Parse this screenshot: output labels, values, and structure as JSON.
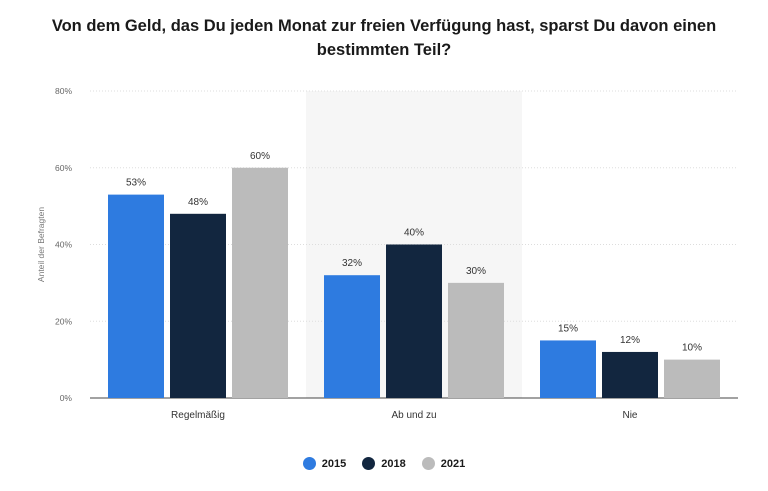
{
  "chart_data": {
    "type": "bar",
    "title": "Von dem Geld, das Du jeden Monat zur freien Verfügung hast, sparst Du davon einen bestimmten Teil?",
    "ylabel": "Anteil der Befragten",
    "xlabel": "",
    "ylim": [
      0,
      80
    ],
    "yticks": [
      0,
      20,
      40,
      60,
      80
    ],
    "ytick_labels": [
      "0%",
      "20%",
      "40%",
      "60%",
      "80%"
    ],
    "categories": [
      "Regelmäßig",
      "Ab und zu",
      "Nie"
    ],
    "series": [
      {
        "name": "2015",
        "color": "#2e7be0",
        "values": [
          53,
          32,
          15
        ],
        "labels": [
          "53%",
          "32%",
          "15%"
        ]
      },
      {
        "name": "2018",
        "color": "#12263f",
        "values": [
          48,
          40,
          12
        ],
        "labels": [
          "48%",
          "40%",
          "12%"
        ]
      },
      {
        "name": "2021",
        "color": "#bbbbbb",
        "values": [
          60,
          30,
          10
        ],
        "labels": [
          "60%",
          "30%",
          "10%"
        ]
      }
    ],
    "legend_position": "bottom-center",
    "grid": true
  }
}
